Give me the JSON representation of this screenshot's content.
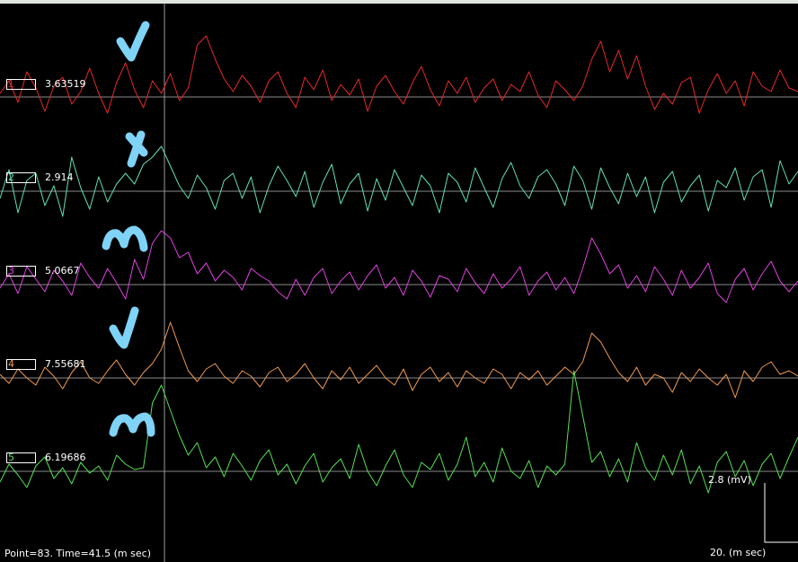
{
  "app": {
    "status_text": "Point=83.  Time=41.5 (m sec)",
    "y_scale_label": "2.8 (mV)",
    "x_scale_label": "20. (m sec)"
  },
  "colors": {
    "background": "#000000",
    "baseline": "#8a8a8a",
    "cursor": "#9a9a9a",
    "annotation": "#7fd3f7"
  },
  "chart_data": {
    "type": "line",
    "cursor_point": 83,
    "cursor_time_ms": 41.5,
    "series": [
      {
        "name": "1",
        "value": "3.63519",
        "color": "#e8282a",
        "values": [
          0.2,
          0.9,
          -0.3,
          1.4,
          0.5,
          -0.8,
          0.6,
          1.1,
          -0.4,
          0.3,
          1.6,
          0.2,
          -0.9,
          0.8,
          1.9,
          0.4,
          -0.6,
          0.9,
          0.2,
          1.3,
          -0.2,
          0.5,
          2.9,
          3.4,
          2.1,
          1.0,
          0.3,
          1.2,
          0.6,
          -0.3,
          0.9,
          1.4,
          0.2,
          -0.6,
          1.1,
          0.4,
          1.5,
          -0.2,
          0.7,
          0.1,
          1.0,
          -0.8,
          0.6,
          1.2,
          0.3,
          -0.4,
          0.8,
          1.7,
          0.4,
          -0.5,
          0.9,
          0.2,
          1.1,
          -0.3,
          0.5,
          1.0,
          -0.2,
          0.7,
          0.3,
          1.4,
          0.1,
          -0.6,
          0.9,
          0.4,
          -0.2,
          0.6,
          2.1,
          3.1,
          1.4,
          2.6,
          1.0,
          2.3,
          0.6,
          -0.7,
          0.2,
          -0.4,
          0.8,
          1.1,
          -0.9,
          0.4,
          1.3,
          0.2,
          0.9,
          -0.5,
          1.4,
          0.6,
          0.3,
          1.5,
          0.5,
          0.3
        ]
      },
      {
        "name": "2",
        "value": "2.914",
        "color": "#5fe0b8",
        "values": [
          -0.4,
          1.2,
          -1.2,
          0.6,
          1.0,
          -0.8,
          0.3,
          -1.4,
          1.9,
          0.2,
          -1.0,
          0.8,
          -0.6,
          0.4,
          1.0,
          0.4,
          1.5,
          1.9,
          2.5,
          1.4,
          0.3,
          -0.4,
          0.9,
          0.2,
          -1.0,
          0.6,
          1.0,
          -0.4,
          0.8,
          -1.2,
          0.3,
          1.4,
          0.6,
          -0.3,
          1.1,
          -0.9,
          0.5,
          1.5,
          -0.7,
          0.4,
          1.0,
          -1.1,
          0.7,
          -0.5,
          1.2,
          0.2,
          -0.8,
          0.9,
          0.3,
          -1.2,
          1.0,
          0.5,
          -0.6,
          1.3,
          0.2,
          -0.9,
          0.7,
          1.6,
          0.3,
          -0.4,
          0.8,
          1.2,
          0.4,
          -0.8,
          1.4,
          0.6,
          -1.0,
          1.3,
          0.2,
          -0.7,
          1.0,
          -0.3,
          0.8,
          -1.2,
          0.5,
          1.1,
          -0.6,
          0.3,
          0.9,
          -1.1,
          0.6,
          0.2,
          1.3,
          -0.5,
          0.8,
          1.2,
          -0.9,
          1.7,
          0.4,
          1.1
        ]
      },
      {
        "name": "3",
        "value": "5.0667",
        "color": "#e040e0",
        "values": [
          -0.2,
          0.6,
          -0.5,
          1.0,
          0.3,
          -0.4,
          0.8,
          0.2,
          -0.6,
          1.2,
          0.4,
          -0.2,
          0.9,
          0.1,
          -0.8,
          1.4,
          0.3,
          2.3,
          3.0,
          2.6,
          1.5,
          1.8,
          0.6,
          1.2,
          0.2,
          0.8,
          0.4,
          -0.3,
          0.9,
          0.5,
          0.2,
          -0.4,
          -0.8,
          0.3,
          -0.6,
          0.4,
          0.9,
          -0.5,
          0.2,
          0.7,
          -0.3,
          0.5,
          1.1,
          -0.2,
          0.4,
          -0.6,
          0.8,
          0.2,
          -0.7,
          0.5,
          0.3,
          -0.4,
          0.9,
          0.1,
          -0.5,
          0.6,
          -0.2,
          0.3,
          1.0,
          -0.6,
          0.2,
          0.7,
          -0.3,
          0.4,
          -0.5,
          0.9,
          2.6,
          1.7,
          0.6,
          1.1,
          -0.2,
          0.5,
          -0.4,
          1.0,
          0.3,
          -0.6,
          0.8,
          -0.2,
          0.4,
          1.2,
          -0.5,
          -1.0,
          0.3,
          0.9,
          -0.3,
          0.6,
          1.3,
          0.2,
          -0.4,
          0.2
        ]
      },
      {
        "name": "4",
        "value": "7.55681",
        "color": "#f09a50",
        "values": [
          0.2,
          -0.3,
          0.5,
          0.0,
          -0.4,
          0.6,
          0.1,
          -0.6,
          0.3,
          0.9,
          0.0,
          -0.3,
          0.4,
          1.0,
          0.2,
          -0.4,
          0.3,
          0.8,
          1.6,
          3.1,
          1.7,
          0.4,
          -0.2,
          0.5,
          0.8,
          0.1,
          -0.3,
          0.4,
          0.1,
          -0.5,
          0.3,
          0.6,
          -0.2,
          0.2,
          0.8,
          0.0,
          -0.6,
          0.4,
          -0.1,
          0.6,
          -0.3,
          0.2,
          0.7,
          0.0,
          -0.4,
          0.5,
          -0.7,
          0.2,
          0.6,
          -0.2,
          0.3,
          -0.5,
          0.4,
          0.0,
          -0.3,
          0.5,
          0.2,
          -0.6,
          0.3,
          -0.1,
          0.4,
          -0.4,
          0.1,
          0.6,
          0.2,
          0.9,
          2.5,
          2.0,
          1.1,
          0.3,
          -0.2,
          0.6,
          -0.4,
          0.2,
          0.0,
          -0.8,
          0.3,
          -0.2,
          0.5,
          0.0,
          -0.4,
          0.2,
          -1.1,
          0.4,
          -0.2,
          0.6,
          0.9,
          0.2,
          0.4,
          0.1
        ]
      },
      {
        "name": "5",
        "value": "6.19686",
        "color": "#54e054",
        "values": [
          -0.6,
          0.4,
          -0.2,
          -0.9,
          0.3,
          0.8,
          -0.4,
          0.2,
          -0.7,
          0.5,
          -0.1,
          0.3,
          -0.5,
          0.9,
          0.4,
          0.1,
          0.2,
          3.8,
          4.8,
          3.4,
          2.0,
          0.9,
          1.6,
          0.2,
          0.8,
          -0.3,
          1.0,
          0.3,
          -0.5,
          0.6,
          1.2,
          -0.2,
          0.4,
          -0.7,
          0.3,
          1.0,
          -0.6,
          0.2,
          0.7,
          -0.4,
          1.5,
          0.0,
          -0.8,
          0.3,
          1.2,
          -0.2,
          -0.9,
          0.5,
          0.1,
          1.0,
          -0.5,
          0.4,
          1.9,
          -0.3,
          0.5,
          -0.6,
          1.3,
          0.0,
          -0.4,
          0.6,
          -0.9,
          0.3,
          -0.2,
          0.4,
          5.6,
          3.1,
          0.5,
          1.1,
          -0.3,
          0.7,
          -0.6,
          1.6,
          0.2,
          -0.5,
          0.9,
          -0.2,
          1.2,
          -0.7,
          0.3,
          -1.2,
          0.5,
          1.1,
          -0.3,
          0.6,
          -0.8,
          0.4,
          1.0,
          -0.4,
          0.8,
          1.9
        ]
      }
    ]
  }
}
